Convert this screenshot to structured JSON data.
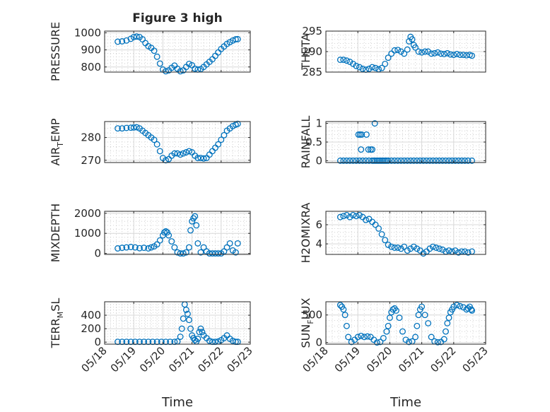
{
  "chart_data": [
    {
      "type": "scatter",
      "title": "Figure 3 high",
      "ylabel": "PRESSURE",
      "ylabel_sub": "",
      "ylim": [
        770,
        1010
      ],
      "yticks": [
        800,
        900,
        1000
      ],
      "grid": true,
      "color": "#0072bd",
      "xlim": [
        0,
        5
      ],
      "xticks": [
        "05/18",
        "05/19",
        "05/20",
        "05/21",
        "05/22",
        "05/23"
      ],
      "show_xticklabels": false,
      "xlabel": "",
      "x": [
        0.45,
        0.6,
        0.75,
        0.9,
        1.0,
        1.1,
        1.2,
        1.3,
        1.4,
        1.5,
        1.6,
        1.7,
        1.8,
        1.9,
        2.0,
        2.1,
        2.2,
        2.3,
        2.4,
        2.5,
        2.6,
        2.7,
        2.8,
        2.9,
        3.0,
        3.1,
        3.2,
        3.3,
        3.4,
        3.5,
        3.6,
        3.7,
        3.8,
        3.9,
        4.0,
        4.1,
        4.2,
        4.3,
        4.4,
        4.5,
        4.57
      ],
      "y": [
        948,
        950,
        955,
        965,
        975,
        978,
        975,
        962,
        940,
        922,
        912,
        895,
        860,
        820,
        785,
        775,
        780,
        795,
        808,
        790,
        775,
        780,
        800,
        818,
        810,
        790,
        785,
        788,
        800,
        815,
        830,
        845,
        865,
        885,
        905,
        920,
        935,
        945,
        955,
        962,
        963
      ]
    },
    {
      "type": "scatter",
      "title": "",
      "ylabel": "THETA",
      "ylabel_sub": "",
      "ylim": [
        285,
        295
      ],
      "yticks": [
        285,
        290,
        295
      ],
      "grid": true,
      "color": "#0072bd",
      "xlim": [
        0,
        5
      ],
      "xticks": [
        "05/18",
        "05/19",
        "05/20",
        "05/21",
        "05/22",
        "05/23"
      ],
      "show_xticklabels": false,
      "xlabel": "",
      "x": [
        0.45,
        0.55,
        0.65,
        0.75,
        0.85,
        0.95,
        1.05,
        1.15,
        1.25,
        1.35,
        1.45,
        1.55,
        1.65,
        1.75,
        1.85,
        1.95,
        2.05,
        2.15,
        2.25,
        2.35,
        2.45,
        2.55,
        2.6,
        2.65,
        2.7,
        2.75,
        2.8,
        2.9,
        3.0,
        3.1,
        3.2,
        3.3,
        3.4,
        3.5,
        3.6,
        3.7,
        3.8,
        3.9,
        4.0,
        4.1,
        4.2,
        4.3,
        4.4,
        4.5,
        4.57
      ],
      "y": [
        288,
        288,
        287.8,
        287.5,
        287,
        286.5,
        286.2,
        285.8,
        285.6,
        285.8,
        286.2,
        286,
        285.7,
        286,
        287,
        288.5,
        289.5,
        290.3,
        290.4,
        290,
        289.5,
        290.5,
        292.5,
        293.6,
        293,
        291.6,
        291,
        290,
        289.8,
        290,
        290,
        289.5,
        289.6,
        289.8,
        289.5,
        289.4,
        289.6,
        289.3,
        289.2,
        289.4,
        289.2,
        289.2,
        289.1,
        289.2,
        289
      ]
    },
    {
      "type": "scatter",
      "title": "",
      "ylabel": "AIR",
      "ylabel_sub": "T",
      "ylabel_suffix": "EMP",
      "ylim": [
        269,
        287
      ],
      "yticks": [
        270,
        280
      ],
      "grid": true,
      "color": "#0072bd",
      "xlim": [
        0,
        5
      ],
      "xticks": [
        "05/18",
        "05/19",
        "05/20",
        "05/21",
        "05/22",
        "05/23"
      ],
      "show_xticklabels": false,
      "xlabel": "",
      "x": [
        0.45,
        0.6,
        0.75,
        0.9,
        1.0,
        1.1,
        1.2,
        1.3,
        1.4,
        1.5,
        1.6,
        1.7,
        1.8,
        1.9,
        2.0,
        2.1,
        2.2,
        2.3,
        2.4,
        2.5,
        2.6,
        2.7,
        2.8,
        2.9,
        3.0,
        3.1,
        3.2,
        3.3,
        3.4,
        3.5,
        3.6,
        3.7,
        3.8,
        3.9,
        4.0,
        4.1,
        4.2,
        4.3,
        4.4,
        4.5,
        4.57
      ],
      "y": [
        284,
        284,
        284.2,
        284.3,
        284.4,
        284.5,
        284,
        283,
        282,
        281,
        280,
        279,
        277,
        274,
        271,
        270,
        270.5,
        272,
        273,
        273,
        272.5,
        273,
        273.5,
        274,
        273.5,
        272,
        271,
        271,
        270.8,
        271,
        272.5,
        274,
        275.5,
        277,
        279,
        281,
        283,
        284,
        285,
        285.6,
        286
      ]
    },
    {
      "type": "scatter",
      "title": "",
      "ylabel": "RAINFALL",
      "ylabel_sub": "",
      "ylim": [
        -0.05,
        1.05
      ],
      "yticks": [
        0,
        0.5,
        1
      ],
      "grid": true,
      "color": "#0072bd",
      "xlim": [
        0,
        5
      ],
      "xticks": [
        "05/18",
        "05/19",
        "05/20",
        "05/21",
        "05/22",
        "05/23"
      ],
      "show_xticklabels": false,
      "xlabel": "",
      "x": [
        0.45,
        0.55,
        0.65,
        0.75,
        0.85,
        0.95,
        1.05,
        1.15,
        1.25,
        1.35,
        1.45,
        1.5,
        1.55,
        1.6,
        1.65,
        1.7,
        1.75,
        1.8,
        1.85,
        1.9,
        1.95,
        2.05,
        2.15,
        2.25,
        2.35,
        2.45,
        2.55,
        2.65,
        2.75,
        2.85,
        2.95,
        3.05,
        3.15,
        3.25,
        3.35,
        3.45,
        3.55,
        3.65,
        3.75,
        3.85,
        3.95,
        4.05,
        4.15,
        4.25,
        4.35,
        4.45,
        4.57,
        1.02,
        1.07,
        1.1,
        1.12,
        1.27,
        1.33,
        1.4,
        1.45,
        1.53
      ],
      "y": [
        0,
        0,
        0,
        0,
        0,
        0,
        0,
        0,
        0,
        0,
        0,
        0,
        0,
        0,
        0,
        0,
        0,
        0,
        0,
        0,
        0,
        0,
        0,
        0,
        0,
        0,
        0,
        0,
        0,
        0,
        0,
        0,
        0,
        0,
        0,
        0,
        0,
        0,
        0,
        0,
        0,
        0,
        0,
        0,
        0,
        0,
        0,
        0.7,
        0.7,
        0.3,
        0.7,
        0.7,
        0.3,
        0.3,
        0.3,
        1.0
      ]
    },
    {
      "type": "scatter",
      "title": "",
      "ylabel": "MIXDEPTH",
      "ylabel_sub": "",
      "ylim": [
        -50,
        2100
      ],
      "yticks": [
        0,
        1000,
        2000
      ],
      "grid": true,
      "color": "#0072bd",
      "xlim": [
        0,
        5
      ],
      "xticks": [
        "05/18",
        "05/19",
        "05/20",
        "05/21",
        "05/22",
        "05/23"
      ],
      "show_xticklabels": false,
      "xlabel": "",
      "x": [
        0.45,
        0.6,
        0.75,
        0.9,
        1.05,
        1.2,
        1.35,
        1.5,
        1.6,
        1.7,
        1.8,
        1.9,
        2.0,
        2.05,
        2.1,
        2.15,
        2.2,
        2.3,
        2.4,
        2.5,
        2.6,
        2.7,
        2.8,
        2.9,
        2.95,
        3.0,
        3.05,
        3.1,
        3.15,
        3.2,
        3.3,
        3.4,
        3.5,
        3.6,
        3.7,
        3.8,
        3.9,
        4.0,
        4.1,
        4.2,
        4.3,
        4.4,
        4.5,
        4.57
      ],
      "y": [
        250,
        280,
        300,
        320,
        300,
        260,
        280,
        250,
        300,
        350,
        450,
        650,
        900,
        1050,
        1100,
        1050,
        900,
        600,
        300,
        50,
        0,
        0,
        50,
        300,
        1150,
        1600,
        1750,
        1850,
        1400,
        500,
        50,
        300,
        100,
        0,
        0,
        0,
        0,
        0,
        100,
        300,
        500,
        150,
        50,
        500
      ]
    },
    {
      "type": "scatter",
      "title": "",
      "ylabel": "H2OMIXRA",
      "ylabel_sub": "",
      "ylim": [
        2.9,
        7.4
      ],
      "yticks": [
        4,
        6
      ],
      "grid": true,
      "color": "#0072bd",
      "xlim": [
        0,
        5
      ],
      "xticks": [
        "05/18",
        "05/19",
        "05/20",
        "05/21",
        "05/22",
        "05/23"
      ],
      "show_xticklabels": false,
      "xlabel": "",
      "x": [
        0.45,
        0.55,
        0.65,
        0.75,
        0.85,
        0.95,
        1.05,
        1.15,
        1.25,
        1.35,
        1.45,
        1.55,
        1.65,
        1.75,
        1.85,
        1.95,
        2.05,
        2.15,
        2.25,
        2.35,
        2.45,
        2.55,
        2.65,
        2.75,
        2.85,
        2.95,
        3.05,
        3.15,
        3.25,
        3.35,
        3.45,
        3.55,
        3.65,
        3.75,
        3.85,
        3.95,
        4.05,
        4.15,
        4.25,
        4.35,
        4.45,
        4.57
      ],
      "y": [
        6.8,
        6.9,
        7.0,
        6.8,
        7.0,
        6.9,
        7.0,
        6.8,
        6.5,
        6.6,
        6.3,
        6.0,
        5.6,
        5.0,
        4.4,
        3.9,
        3.7,
        3.6,
        3.6,
        3.5,
        3.7,
        3.3,
        3.5,
        3.7,
        3.5,
        3.3,
        3.0,
        3.2,
        3.5,
        3.7,
        3.6,
        3.5,
        3.4,
        3.2,
        3.3,
        3.2,
        3.3,
        3.1,
        3.2,
        3.2,
        3.1,
        3.2
      ]
    },
    {
      "type": "scatter",
      "title": "",
      "ylabel": "TERR",
      "ylabel_sub": "M",
      "ylabel_suffix": "SL",
      "ylim": [
        -30,
        600
      ],
      "yticks": [
        0,
        200,
        400
      ],
      "grid": true,
      "color": "#0072bd",
      "xlim": [
        0,
        5
      ],
      "xticks": [
        "05/18",
        "05/19",
        "05/20",
        "05/21",
        "05/22",
        "05/23"
      ],
      "show_xticklabels": true,
      "xlabel": "Time",
      "x": [
        0.45,
        0.6,
        0.75,
        0.9,
        1.05,
        1.2,
        1.35,
        1.5,
        1.65,
        1.8,
        1.95,
        2.1,
        2.25,
        2.4,
        2.5,
        2.6,
        2.65,
        2.7,
        2.75,
        2.8,
        2.85,
        2.9,
        2.95,
        3.0,
        3.05,
        3.1,
        3.15,
        3.2,
        3.25,
        3.3,
        3.35,
        3.4,
        3.5,
        3.6,
        3.7,
        3.8,
        3.9,
        4.0,
        4.1,
        4.2,
        4.3,
        4.4,
        4.5,
        4.57
      ],
      "y": [
        5,
        5,
        5,
        5,
        5,
        5,
        5,
        5,
        5,
        5,
        5,
        5,
        5,
        5,
        10,
        80,
        200,
        350,
        560,
        480,
        420,
        330,
        200,
        100,
        60,
        30,
        10,
        50,
        150,
        200,
        150,
        100,
        60,
        20,
        5,
        5,
        10,
        30,
        60,
        100,
        50,
        20,
        5,
        5
      ]
    },
    {
      "type": "scatter",
      "title": "",
      "ylabel": "SUN",
      "ylabel_sub": "F",
      "ylabel_suffix": "LUX",
      "ylim": [
        -30,
        740
      ],
      "yticks": [
        0,
        500
      ],
      "grid": true,
      "color": "#0072bd",
      "xlim": [
        0,
        5
      ],
      "xticks": [
        "05/18",
        "05/19",
        "05/20",
        "05/21",
        "05/22",
        "05/23"
      ],
      "show_xticklabels": true,
      "xlabel": "Time",
      "x": [
        0.45,
        0.5,
        0.55,
        0.6,
        0.65,
        0.7,
        0.8,
        0.9,
        1.0,
        1.1,
        1.2,
        1.3,
        1.4,
        1.5,
        1.6,
        1.7,
        1.8,
        1.9,
        1.95,
        2.0,
        2.05,
        2.1,
        2.15,
        2.2,
        2.3,
        2.4,
        2.5,
        2.6,
        2.7,
        2.8,
        2.85,
        2.9,
        2.95,
        3.0,
        3.1,
        3.2,
        3.3,
        3.4,
        3.5,
        3.6,
        3.7,
        3.75,
        3.8,
        3.85,
        3.9,
        3.95,
        4.0,
        4.1,
        4.2,
        4.3,
        4.4,
        4.45,
        4.5,
        4.55,
        4.57
      ],
      "y": [
        680,
        650,
        600,
        500,
        300,
        100,
        10,
        50,
        100,
        120,
        100,
        110,
        100,
        50,
        0,
        10,
        80,
        200,
        300,
        450,
        550,
        600,
        620,
        580,
        450,
        200,
        50,
        10,
        20,
        100,
        300,
        500,
        600,
        650,
        500,
        350,
        100,
        20,
        5,
        10,
        60,
        200,
        350,
        450,
        550,
        600,
        650,
        680,
        660,
        640,
        600,
        620,
        650,
        600,
        580
      ]
    }
  ]
}
